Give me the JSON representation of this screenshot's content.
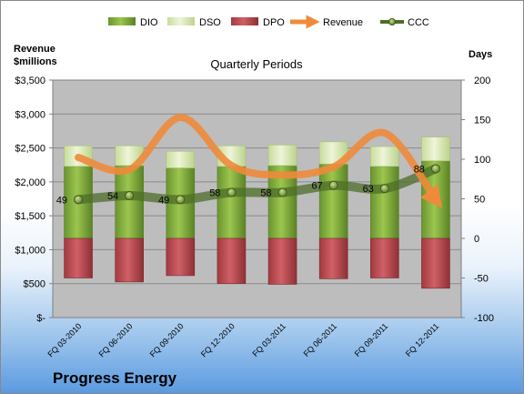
{
  "company": "Progress Energy",
  "chart_data": {
    "type": "bar",
    "title": "Quarterly Periods",
    "ylabel_left": [
      "Revenue",
      "$millions"
    ],
    "ylabel_right": "Days",
    "categories": [
      "FQ 03-2010",
      "FQ 06-2010",
      "FQ 09-2010",
      "FQ 12-2010",
      "FQ 03-2011",
      "FQ 06-2011",
      "FQ 09-2011",
      "FQ 12-2011"
    ],
    "left_axis": {
      "min": 0,
      "max": 3500,
      "step": 500,
      "tick_labels": [
        "$-",
        "$500",
        "$1,000",
        "$1,500",
        "$2,000",
        "$2,500",
        "$3,000",
        "$3,500"
      ]
    },
    "right_axis": {
      "min": -100,
      "max": 200,
      "step": 50,
      "tick_labels": [
        "-100",
        "-50",
        "0",
        "50",
        "100",
        "150",
        "200"
      ]
    },
    "series": [
      {
        "name": "DIO",
        "axis": "right",
        "kind": "bar",
        "color": "#7aa33a",
        "values": [
          91,
          92,
          89,
          91,
          92,
          94,
          91,
          98
        ]
      },
      {
        "name": "DSO",
        "axis": "right",
        "kind": "bar",
        "color": "#d6e6b0",
        "values": [
          26,
          25,
          21,
          26,
          26,
          28,
          25,
          30
        ]
      },
      {
        "name": "DPO",
        "axis": "right",
        "kind": "bar",
        "color": "#b94a50",
        "values": [
          -50,
          -55,
          -47,
          -57,
          -58,
          -51,
          -50,
          -63
        ]
      },
      {
        "name": "Revenue",
        "axis": "left",
        "kind": "line",
        "color": "#ee8a3a",
        "values": [
          2360,
          2180,
          2950,
          2240,
          2100,
          2220,
          2720,
          1740
        ]
      },
      {
        "name": "CCC",
        "axis": "right",
        "kind": "line",
        "color": "#4e6e2a",
        "values": [
          49,
          54,
          49,
          58,
          58,
          67,
          63,
          88
        ]
      }
    ],
    "data_labels": [
      "49",
      "54",
      "49",
      "58",
      "58",
      "67",
      "63",
      "88"
    ],
    "legend_position": "top",
    "grid": true
  }
}
